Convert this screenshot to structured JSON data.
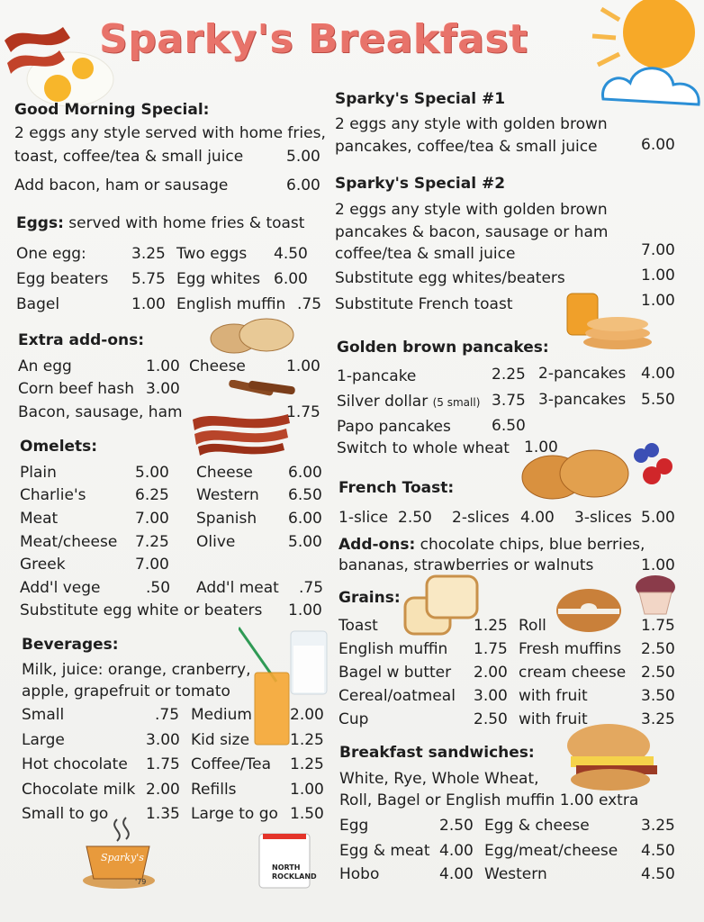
{
  "title": "Sparky's Breakfast",
  "good_morning": {
    "header": "Good Morning Special:",
    "line1": "2 eggs any style served with home fries,",
    "line2": "toast, coffee/tea & small juice",
    "price": "5.00",
    "addon": "Add bacon, ham or sausage",
    "addon_price": "6.00"
  },
  "eggs": {
    "header": "Eggs:",
    "desc": "served with home fries & toast",
    "items": [
      {
        "name": "One egg:",
        "price": "3.25"
      },
      {
        "name": "Two eggs",
        "price": "4.50"
      },
      {
        "name": "Egg beaters",
        "price": "5.75"
      },
      {
        "name": "Egg whites",
        "price": "6.00"
      },
      {
        "name": "Bagel",
        "price": "1.00"
      },
      {
        "name": "English muffin",
        "price": ".75"
      }
    ]
  },
  "extra": {
    "header": "Extra add-ons:",
    "items": [
      {
        "name": "An egg",
        "price": "1.00"
      },
      {
        "name": "Cheese",
        "price": "1.00"
      },
      {
        "name": "Corn beef hash",
        "price": "3.00"
      },
      {
        "name": "Bacon, sausage, ham",
        "price": "1.75"
      }
    ]
  },
  "omelets": {
    "header": "Omelets:",
    "items": [
      {
        "name": "Plain",
        "price": "5.00"
      },
      {
        "name": "Cheese",
        "price": "6.00"
      },
      {
        "name": "Charlie's",
        "price": "6.25"
      },
      {
        "name": "Western",
        "price": "6.50"
      },
      {
        "name": "Meat",
        "price": "7.00"
      },
      {
        "name": "Spanish",
        "price": "6.00"
      },
      {
        "name": "Meat/cheese",
        "price": "7.25"
      },
      {
        "name": "Olive",
        "price": "5.00"
      },
      {
        "name": "Greek",
        "price": "7.00"
      },
      {
        "name": "Add'l vege",
        "price": ".50"
      },
      {
        "name": "Add'l meat",
        "price": ".75"
      },
      {
        "name": "Substitute egg white or beaters",
        "price": "1.00"
      }
    ]
  },
  "beverages": {
    "header": "Beverages:",
    "line1": "Milk, juice: orange, cranberry,",
    "line2": "apple, grapefruit or tomato",
    "items": [
      {
        "name": "Small",
        "price": ".75"
      },
      {
        "name": "Medium",
        "price": "2.00"
      },
      {
        "name": "Large",
        "price": "3.00"
      },
      {
        "name": "Kid size",
        "price": "1.25"
      },
      {
        "name": "Hot chocolate",
        "price": "1.75"
      },
      {
        "name": "Coffee/Tea",
        "price": "1.25"
      },
      {
        "name": "Chocolate milk",
        "price": "2.00"
      },
      {
        "name": "Refills",
        "price": "1.00"
      },
      {
        "name": "Small to go",
        "price": "1.35"
      },
      {
        "name": "Large to go",
        "price": "1.50"
      }
    ]
  },
  "special1": {
    "header": "Sparky's Special #1",
    "line1": "2 eggs any style with golden brown",
    "line2": "pancakes, coffee/tea & small juice",
    "price": "6.00"
  },
  "special2": {
    "header": "Sparky's Special #2",
    "line1": "2 eggs any style with golden brown",
    "line2": "pancakes & bacon, sausage or ham",
    "line3": "coffee/tea & small juice",
    "price": "7.00",
    "sub1": "Substitute egg whites/beaters",
    "sub1_price": "1.00",
    "sub2": "Substitute French toast",
    "sub2_price": "1.00"
  },
  "pancakes": {
    "header": "Golden brown pancakes:",
    "items": [
      {
        "name": "1-pancake",
        "price": "2.25"
      },
      {
        "name": "2-pancakes",
        "price": "4.00"
      },
      {
        "name": "Silver dollar",
        "note": "(5 small)",
        "price": "3.75"
      },
      {
        "name": "3-pancakes",
        "price": "5.50"
      },
      {
        "name": "Papo pancakes",
        "price": "6.50"
      },
      {
        "name": "Switch to whole wheat",
        "price": "1.00"
      }
    ]
  },
  "french": {
    "header": "French Toast:",
    "items": [
      {
        "name": "1-slice",
        "price": "2.50"
      },
      {
        "name": "2-slices",
        "price": "4.00"
      },
      {
        "name": "3-slices",
        "price": "5.00"
      }
    ]
  },
  "addons": {
    "header": "Add-ons:",
    "line1": "chocolate chips, blue berries,",
    "line2": "bananas, strawberries or walnuts",
    "price": "1.00"
  },
  "grains": {
    "header": "Grains:",
    "items": [
      {
        "name": "Toast",
        "price": "1.25"
      },
      {
        "name": "Roll",
        "price": "1.75"
      },
      {
        "name": "English muffin",
        "price": "1.75"
      },
      {
        "name": "Fresh muffins",
        "price": "2.50"
      },
      {
        "name": "Bagel w butter",
        "price": "2.00"
      },
      {
        "name": "cream cheese",
        "price": "2.50"
      },
      {
        "name": "Cereal/oatmeal",
        "price": "3.00"
      },
      {
        "name": "with fruit",
        "price": "3.50"
      },
      {
        "name": "Cup",
        "price": "2.50"
      },
      {
        "name": "with fruit",
        "price": "3.25"
      }
    ]
  },
  "sandwiches": {
    "header": "Breakfast sandwiches:",
    "line1": "White, Rye, Whole Wheat,",
    "line2": "Roll, Bagel or English muffin 1.00 extra",
    "items": [
      {
        "name": "Egg",
        "price": "2.50"
      },
      {
        "name": "Egg & cheese",
        "price": "3.25"
      },
      {
        "name": "Egg & meat",
        "price": "4.00"
      },
      {
        "name": "Egg/meat/cheese",
        "price": "4.50"
      },
      {
        "name": "Hobo",
        "price": "4.00"
      },
      {
        "name": "Western",
        "price": "4.50"
      }
    ]
  },
  "logos": {
    "cup_text": "Sparky's",
    "cup_year": "'79",
    "mug_line1": "NORTH",
    "mug_line2": "ROCKLAND"
  },
  "colors": {
    "title": "#e8736a",
    "text": "#1e1e1e",
    "sun": "#f7a928",
    "sky": "#2b8fd6"
  }
}
